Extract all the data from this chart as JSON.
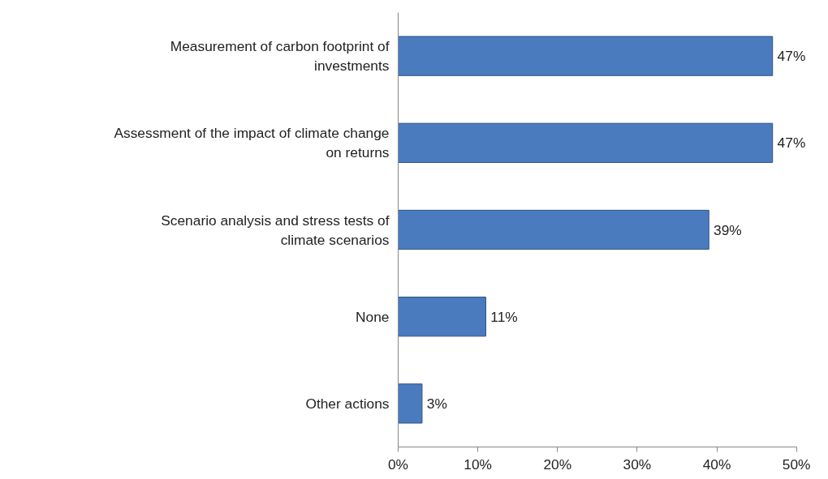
{
  "chart_data": {
    "type": "bar",
    "orientation": "horizontal",
    "categories": [
      "Measurement of carbon footprint of investments",
      "Assessment of the impact of climate change on returns",
      "Scenario analysis and stress tests of climate scenarios",
      "None",
      "Other actions"
    ],
    "values": [
      47,
      47,
      39,
      11,
      3
    ],
    "value_labels": [
      "47%",
      "47%",
      "39%",
      "11%",
      "3%"
    ],
    "color": "#4a7bbf",
    "xlim": [
      0,
      50
    ],
    "xticks": [
      {
        "value": 0,
        "label": "0%"
      },
      {
        "value": 10,
        "label": "10%"
      },
      {
        "value": 20,
        "label": "20%"
      },
      {
        "value": 30,
        "label": "30%"
      },
      {
        "value": 40,
        "label": "40%"
      },
      {
        "value": 50,
        "label": "50%"
      }
    ],
    "grid": false
  }
}
